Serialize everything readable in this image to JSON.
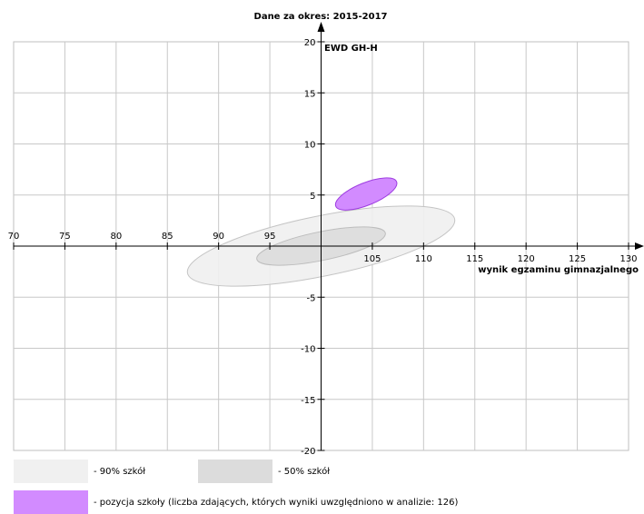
{
  "chart_data": {
    "type": "scatter",
    "title": "Dane za okres: 2015-2017",
    "ylabel": "EWD GH-H",
    "xlabel": "wynik egzaminu gimnazjalnego",
    "xlim": [
      70,
      130
    ],
    "ylim": [
      -20,
      20
    ],
    "x_ticks": [
      70,
      75,
      80,
      85,
      90,
      95,
      100,
      105,
      110,
      115,
      120,
      125,
      130
    ],
    "x_tick_labels": [
      "70",
      "75",
      "80",
      "85",
      "90",
      "95",
      "",
      "105",
      "110",
      "115",
      "120",
      "125",
      "130"
    ],
    "y_ticks": [
      -20,
      -15,
      -10,
      -5,
      0,
      5,
      10,
      15,
      20
    ],
    "y_tick_labels": [
      "-20",
      "-15",
      "-10",
      "-5",
      "",
      "5",
      "10",
      "15",
      "20"
    ],
    "grid": true,
    "ellipses": [
      {
        "name": "90% szkół",
        "cx": 100,
        "cy": 0,
        "rx": 13.3,
        "ry": 2.95,
        "angle_deg": 11.5,
        "color": "#f0f0f0",
        "stroke": "#c4c4c4"
      },
      {
        "name": "50% szkół",
        "cx": 100,
        "cy": 0,
        "rx": 6.4,
        "ry": 1.4,
        "angle_deg": 11.5,
        "color": "#dcdcdc",
        "stroke": "#bdbdbd"
      },
      {
        "name": "pozycja szkoły",
        "cx": 104.4,
        "cy": 5.1,
        "rx": 3.2,
        "ry": 1.1,
        "angle_deg": 22,
        "color": "#d28bff",
        "stroke": "#9d3de0"
      }
    ]
  },
  "legend": {
    "items": [
      {
        "label": "- 90% szkół",
        "color": "#f0f0f0"
      },
      {
        "label": "- 50% szkół",
        "color": "#dcdcdc"
      },
      {
        "label": "- pozycja szkoły (liczba zdających, których wyniki uwzględniono w analizie: 126)",
        "color": "#d28bff"
      }
    ]
  }
}
